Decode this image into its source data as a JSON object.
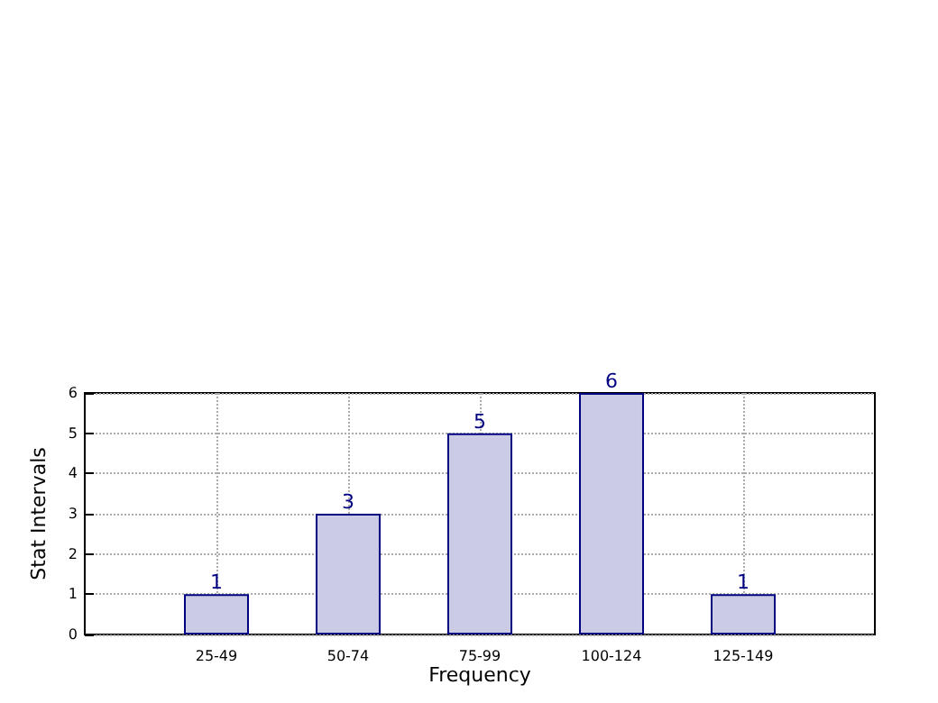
{
  "chart_data": {
    "type": "bar",
    "xlabel": "Frequency",
    "ylabel": "Stat Intervals",
    "categories": [
      "25-49",
      "50-74",
      "75-99",
      "100-124",
      "125-149"
    ],
    "values": [
      1,
      3,
      5,
      6,
      1
    ],
    "color": "#cbcbe6",
    "ylim": [
      0,
      6
    ],
    "yticks": [
      0,
      1,
      2,
      3,
      4,
      5,
      6
    ],
    "grid": true,
    "data_labels": true
  }
}
